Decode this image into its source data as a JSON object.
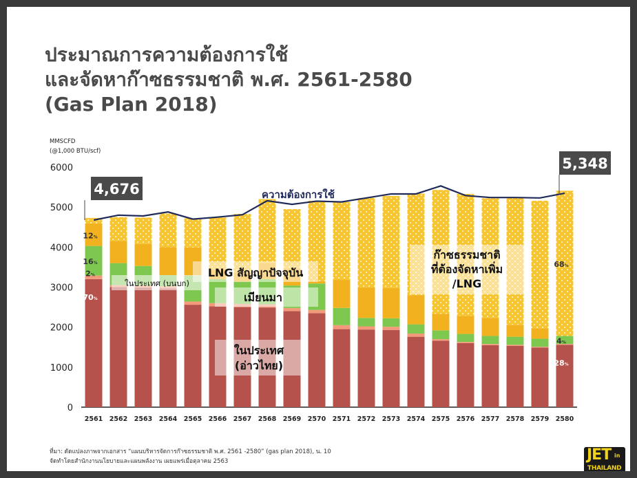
{
  "title_lines": [
    "ประมาณการความต้องการใช้",
    "และจัดหาก๊าซธรรมชาติ พ.ศ. 2561-2580",
    "(Gas Plan 2018)"
  ],
  "source_lines": [
    "ที่มา: ดัดแปลงภาพจากเอกสาร “แผนบริหารจัดการก๊าซธรรมชาติ พ.ศ. 2561 -2580” (gas plan 2018), น. 10",
    "จัดทำโดยสำนักงานนโยบายและแผนพลังงาน เผยแพร่เมื่อตุลาคม 2563"
  ],
  "logo": {
    "big": "JET",
    "small": "in",
    "sub": "THAILAND"
  },
  "colors": {
    "domestic": "#b5524b",
    "myanmar": "#f29a7a",
    "lng_contract": "#7ec850",
    "lng_extra": "#f2b11e",
    "additional": "#f7c531",
    "demand_line": "#1f2a5a",
    "callout_bg": "#4a4a4a"
  },
  "chart_data": {
    "type": "bar",
    "stacked": true,
    "unit_label_lines": [
      "MMSCFD",
      "(@1,000 BTU/scf)"
    ],
    "ylim": [
      0,
      6000
    ],
    "yticks": [
      "0",
      "1000",
      "2000",
      "3000",
      "4000",
      "5000",
      "6000"
    ],
    "categories": [
      "2561",
      "2562",
      "2563",
      "2564",
      "2565",
      "2566",
      "2567",
      "2568",
      "2569",
      "2570",
      "2571",
      "2572",
      "2573",
      "2574",
      "2575",
      "2576",
      "2577",
      "2578",
      "2579",
      "2580"
    ],
    "series": [
      {
        "key": "domestic",
        "values": [
          3200,
          3000,
          2990,
          2970,
          2560,
          2520,
          2500,
          2490,
          2400,
          2350,
          1950,
          1940,
          1930,
          1760,
          1660,
          1600,
          1550,
          1530,
          1490,
          1560
        ]
      },
      {
        "key": "myanmar",
        "values": [
          90,
          50,
          50,
          50,
          80,
          80,
          80,
          80,
          80,
          80,
          100,
          80,
          80,
          80,
          40,
          30,
          30,
          30,
          20,
          20
        ]
      },
      {
        "key": "lng_contract",
        "values": [
          740,
          550,
          490,
          280,
          650,
          600,
          560,
          630,
          560,
          660,
          430,
          210,
          210,
          230,
          220,
          200,
          200,
          200,
          200,
          200
        ]
      },
      {
        "key": "lng_extra",
        "values": [
          560,
          550,
          550,
          700,
          700,
          250,
          230,
          400,
          430,
          60,
          700,
          760,
          760,
          730,
          410,
          450,
          450,
          300,
          260,
          0
        ]
      },
      {
        "key": "additional",
        "values": [
          140,
          600,
          660,
          840,
          730,
          1290,
          1460,
          1600,
          1480,
          2010,
          1950,
          2240,
          2300,
          2540,
          3100,
          3050,
          2990,
          3180,
          3190,
          3630
        ]
      }
    ],
    "demand_line": {
      "label": "ความต้องการใช้",
      "values": [
        4676,
        4800,
        4780,
        4880,
        4700,
        4750,
        4810,
        5160,
        5070,
        5150,
        5130,
        5230,
        5330,
        5330,
        5530,
        5290,
        5240,
        5240,
        5230,
        5348
      ]
    },
    "callouts": [
      {
        "category": "2561",
        "text": "4,676"
      },
      {
        "category": "2580",
        "text": "5,348"
      }
    ],
    "percent_labels": [
      {
        "category": "2561",
        "series": "lng_extra",
        "text": "12",
        "suffix": "%"
      },
      {
        "category": "2561",
        "series": "lng_contract",
        "text": "16",
        "suffix": "%"
      },
      {
        "category": "2561",
        "series": "myanmar",
        "text": "2",
        "suffix": "%"
      },
      {
        "category": "2561",
        "series": "domestic",
        "text": "70",
        "suffix": "%"
      },
      {
        "category": "2580",
        "series": "additional",
        "text": "68",
        "suffix": "%"
      },
      {
        "category": "2580",
        "series": "lng_contract",
        "text": "4",
        "suffix": "%"
      },
      {
        "category": "2580",
        "series": "domestic",
        "text": "28",
        "suffix": "%"
      }
    ],
    "region_labels": {
      "domestic_onshore": "ในประเทศ (บนบก)",
      "lng_contract": "LNG สัญญาปัจจุบัน",
      "myanmar": "เมียนมา",
      "domestic_gulf": [
        "ในประเทศ",
        "(อ่าวไทย)"
      ],
      "additional_lng": [
        "ก๊าซธรรมชาติ",
        "ที่ต้องจัดหาเพิ่ม",
        "/LNG"
      ]
    }
  }
}
